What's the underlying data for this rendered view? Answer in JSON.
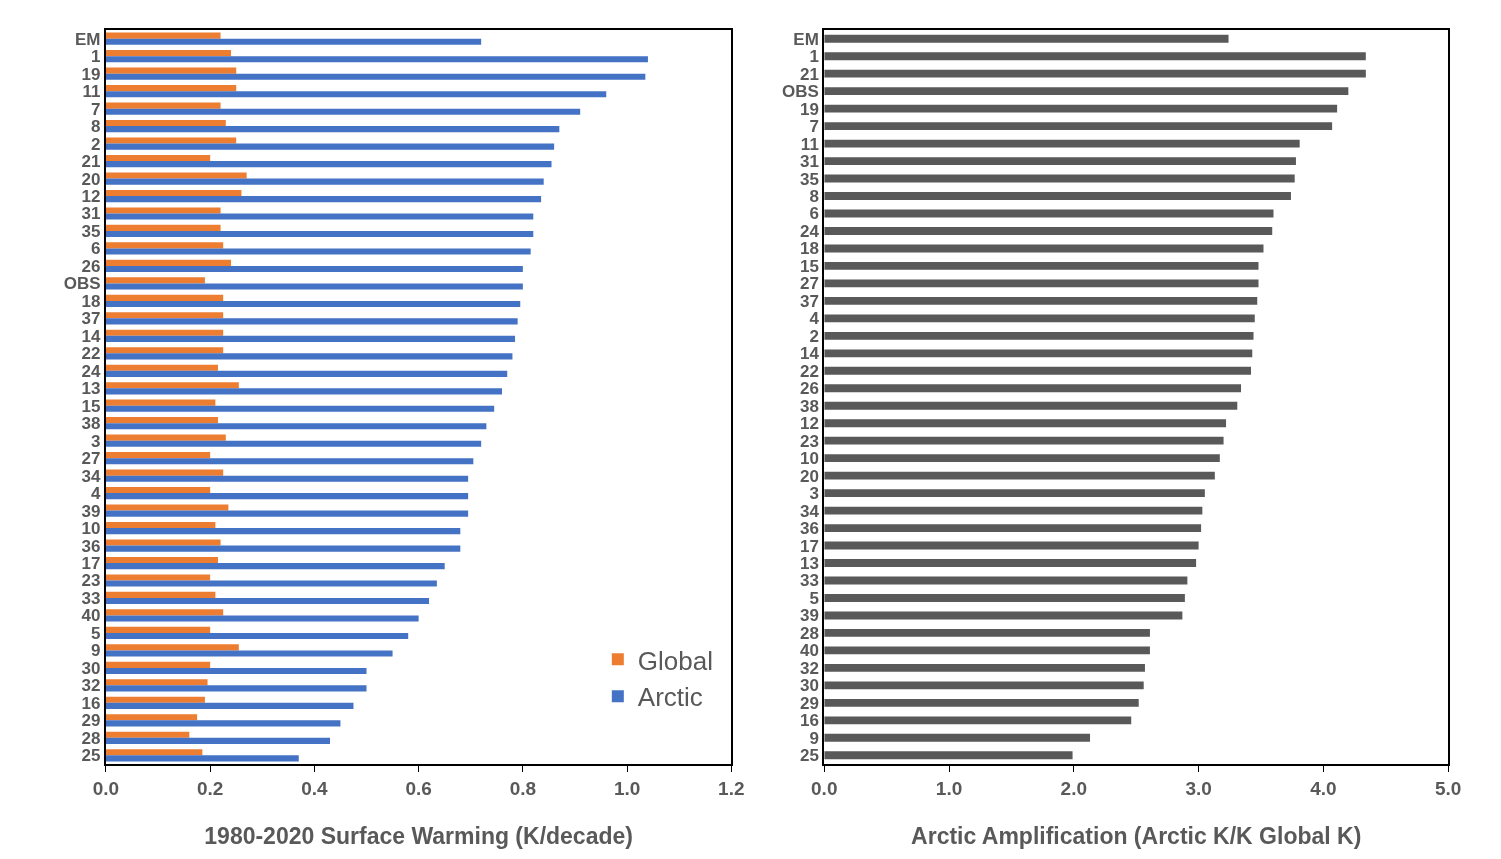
{
  "chart_data": [
    {
      "type": "bar",
      "orientation": "horizontal",
      "xlabel": "1980-2020 Surface Warming (K/decade)",
      "xlim": [
        0,
        1.2
      ],
      "xticks": [
        {
          "value": 0,
          "label": "0.0"
        },
        {
          "value": 0.2,
          "label": "0.2"
        },
        {
          "value": 0.4,
          "label": "0.4"
        },
        {
          "value": 0.6,
          "label": "0.6"
        },
        {
          "value": 0.8,
          "label": "0.8"
        },
        {
          "value": 1.0,
          "label": "1.0"
        },
        {
          "value": 1.2,
          "label": "1.2"
        }
      ],
      "legend": "bottom right",
      "categories": [
        "EM",
        "1",
        "19",
        "11",
        "7",
        "8",
        "2",
        "21",
        "20",
        "12",
        "31",
        "35",
        "6",
        "26",
        "OBS",
        "18",
        "37",
        "14",
        "22",
        "24",
        "13",
        "15",
        "38",
        "3",
        "27",
        "34",
        "4",
        "39",
        "10",
        "36",
        "17",
        "23",
        "33",
        "40",
        "5",
        "9",
        "30",
        "32",
        "16",
        "29",
        "28",
        "25"
      ],
      "series": [
        {
          "name": "Global",
          "color": "#ed7d31",
          "values": [
            0.22,
            0.24,
            0.25,
            0.25,
            0.22,
            0.23,
            0.25,
            0.2,
            0.27,
            0.26,
            0.22,
            0.22,
            0.225,
            0.24,
            0.19,
            0.225,
            0.225,
            0.225,
            0.225,
            0.215,
            0.255,
            0.21,
            0.215,
            0.23,
            0.2,
            0.225,
            0.2,
            0.235,
            0.21,
            0.22,
            0.215,
            0.2,
            0.21,
            0.225,
            0.2,
            0.255,
            0.2,
            0.195,
            0.19,
            0.175,
            0.16,
            0.185
          ]
        },
        {
          "name": "Arctic",
          "color": "#4472c4",
          "values": [
            0.72,
            1.04,
            1.035,
            0.96,
            0.91,
            0.87,
            0.86,
            0.855,
            0.84,
            0.835,
            0.82,
            0.82,
            0.815,
            0.8,
            0.8,
            0.795,
            0.79,
            0.785,
            0.78,
            0.77,
            0.76,
            0.745,
            0.73,
            0.72,
            0.705,
            0.695,
            0.695,
            0.695,
            0.68,
            0.68,
            0.65,
            0.635,
            0.62,
            0.6,
            0.58,
            0.55,
            0.5,
            0.5,
            0.475,
            0.45,
            0.43,
            0.37
          ]
        }
      ]
    },
    {
      "type": "bar",
      "orientation": "horizontal",
      "xlabel": "Arctic Amplification (Arctic K/K Global K)",
      "xlim": [
        0,
        5.0
      ],
      "xticks": [
        {
          "value": 0,
          "label": "0.0"
        },
        {
          "value": 1.0,
          "label": "1.0"
        },
        {
          "value": 2.0,
          "label": "2.0"
        },
        {
          "value": 3.0,
          "label": "3.0"
        },
        {
          "value": 4.0,
          "label": "4.0"
        },
        {
          "value": 5.0,
          "label": "5.0"
        }
      ],
      "categories": [
        "EM",
        "1",
        "21",
        "OBS",
        "19",
        "7",
        "11",
        "31",
        "35",
        "8",
        "6",
        "24",
        "18",
        "15",
        "27",
        "37",
        "4",
        "2",
        "14",
        "22",
        "26",
        "38",
        "12",
        "23",
        "10",
        "20",
        "3",
        "34",
        "36",
        "17",
        "13",
        "33",
        "5",
        "39",
        "28",
        "40",
        "32",
        "30",
        "29",
        "16",
        "9",
        "25"
      ],
      "series": [
        {
          "color": "#595959",
          "values": [
            3.24,
            4.34,
            4.34,
            4.2,
            4.11,
            4.07,
            3.81,
            3.78,
            3.77,
            3.74,
            3.6,
            3.59,
            3.52,
            3.48,
            3.48,
            3.47,
            3.45,
            3.44,
            3.43,
            3.42,
            3.34,
            3.31,
            3.22,
            3.2,
            3.17,
            3.13,
            3.05,
            3.03,
            3.02,
            3.0,
            2.98,
            2.91,
            2.89,
            2.87,
            2.61,
            2.61,
            2.57,
            2.56,
            2.52,
            2.46,
            2.13,
            1.99
          ]
        }
      ]
    }
  ]
}
